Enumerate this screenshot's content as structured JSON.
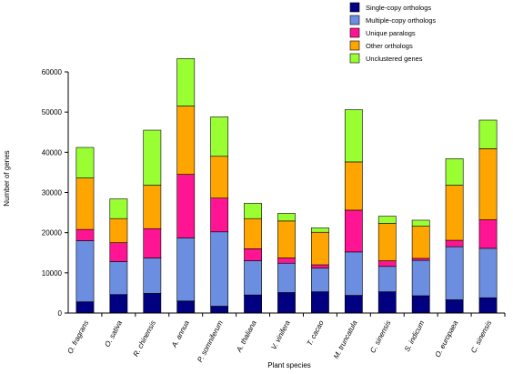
{
  "chart_data": {
    "type": "bar",
    "stacked": true,
    "title": "",
    "xlabel": "Plant species",
    "ylabel": "Number of genes",
    "ylim": [
      0,
      60000
    ],
    "yticks": [
      0,
      10000,
      20000,
      30000,
      40000,
      50000,
      60000
    ],
    "ytick_labels": [
      "0",
      "10000",
      "20000",
      "30000",
      "40000",
      "50000",
      "60000"
    ],
    "grid": false,
    "legend_position": "top-right",
    "categories": [
      "O. fragrans",
      "O. sativa",
      "R. chinensis",
      "A. annua",
      "P. somniferum",
      "A. thaliana",
      "V. vinifera",
      "T. cacao",
      "M. truncatula",
      "C. sinensis",
      "S. indicum",
      "O. europaea",
      "C. sinensis"
    ],
    "series": [
      {
        "name": "Single-copy orthologs",
        "color": "#000080",
        "values": [
          2800,
          4600,
          4900,
          3000,
          1700,
          4500,
          5100,
          5300,
          4400,
          5300,
          4300,
          3300,
          3800
        ]
      },
      {
        "name": "Multiple-copy orthologs",
        "color": "#6B8EE0",
        "values": [
          15200,
          8200,
          8800,
          15700,
          18500,
          8500,
          7300,
          5900,
          10800,
          6300,
          8800,
          13200,
          12300
        ]
      },
      {
        "name": "Unique paralogs",
        "color": "#FF1493",
        "values": [
          2800,
          4700,
          7300,
          15800,
          8400,
          3000,
          1300,
          800,
          10400,
          1400,
          500,
          1600,
          7100
        ]
      },
      {
        "name": "Other orthologs",
        "color": "#FFA500",
        "values": [
          12800,
          6000,
          10800,
          17000,
          10400,
          7500,
          9200,
          8100,
          12000,
          9300,
          8000,
          13700,
          17700
        ]
      },
      {
        "name": "Unclustered genes",
        "color": "#99FF33",
        "values": [
          7600,
          4900,
          13700,
          11800,
          9800,
          3800,
          1900,
          1100,
          13000,
          1800,
          1500,
          6600,
          7100
        ]
      }
    ]
  }
}
